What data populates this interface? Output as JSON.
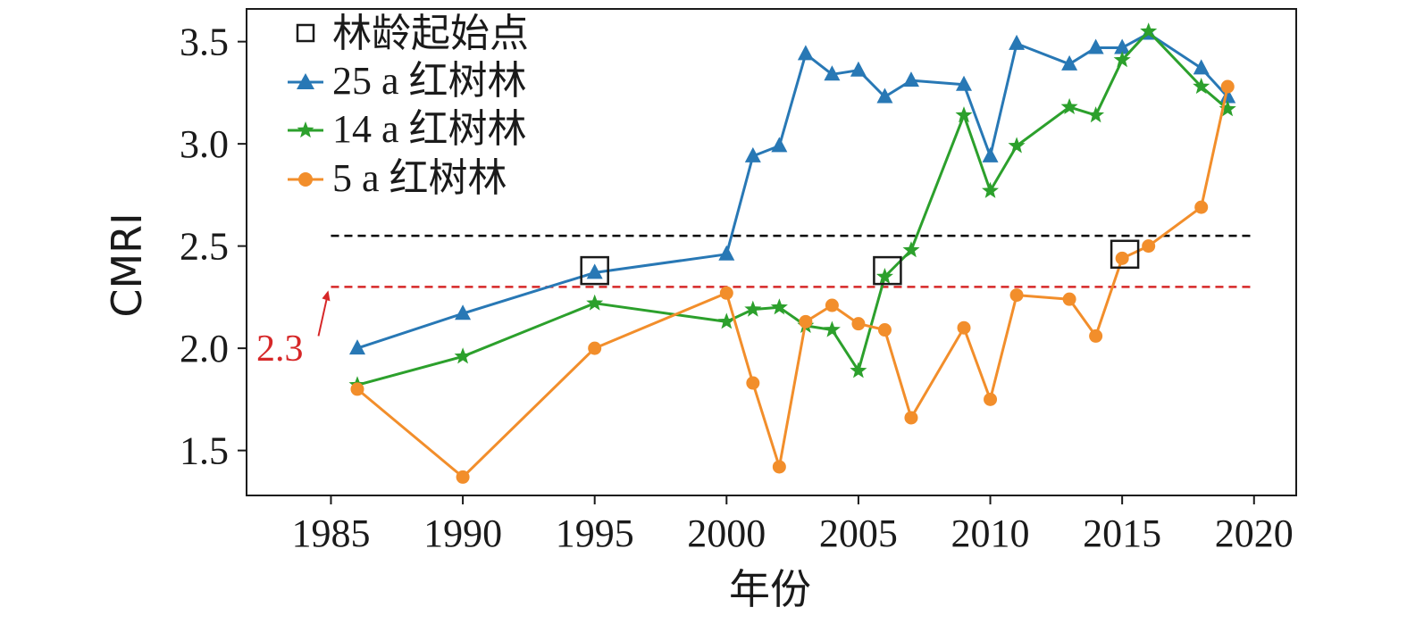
{
  "chart_data": {
    "type": "line",
    "xlabel": "年份",
    "ylabel": "CMRI",
    "xlim": [
      1981.8,
      2021.6
    ],
    "ylim": [
      1.28,
      3.66
    ],
    "xticks": [
      1985,
      1990,
      1995,
      2000,
      2005,
      2010,
      2015,
      2020
    ],
    "yticks": [
      1.5,
      2.0,
      2.5,
      3.0,
      3.5
    ],
    "ytick_labels": [
      "1.5",
      "2.0",
      "2.5",
      "3.0",
      "3.5"
    ],
    "legend_position": "top-left",
    "grid": false,
    "reference_lines": [
      {
        "y": 2.55,
        "color": "#000000",
        "style": "dashed"
      },
      {
        "y": 2.3,
        "color": "#d62728",
        "style": "dashed",
        "label": "2.3"
      }
    ],
    "start_markers": {
      "name": "林龄起始点",
      "points": [
        {
          "x": 1995,
          "y": 2.38
        },
        {
          "x": 2006.1,
          "y": 2.38
        },
        {
          "x": 2015.1,
          "y": 2.46
        }
      ]
    },
    "series": [
      {
        "name": "25 a 红树林",
        "color": "#2878b5",
        "marker": "triangle",
        "x": [
          1986,
          1990,
          1995,
          2000,
          2001,
          2002,
          2003,
          2004,
          2005,
          2006,
          2007,
          2009,
          2010,
          2011,
          2013,
          2014,
          2015,
          2016,
          2018,
          2019
        ],
        "y": [
          2.0,
          2.17,
          2.37,
          2.46,
          2.94,
          2.99,
          3.44,
          3.34,
          3.36,
          3.23,
          3.31,
          3.29,
          2.94,
          3.49,
          3.39,
          3.47,
          3.47,
          3.54,
          3.37,
          3.23
        ]
      },
      {
        "name": "14 a 红树林",
        "color": "#2ca02c",
        "marker": "star",
        "x": [
          1986,
          1990,
          1995,
          2000,
          2001,
          2002,
          2003,
          2004,
          2005,
          2006,
          2007,
          2009,
          2010,
          2011,
          2013,
          2014,
          2015,
          2016,
          2018,
          2019
        ],
        "y": [
          1.82,
          1.96,
          2.22,
          2.13,
          2.19,
          2.2,
          2.11,
          2.09,
          1.89,
          2.35,
          2.48,
          3.14,
          2.77,
          2.99,
          3.18,
          3.14,
          3.41,
          3.55,
          3.28,
          3.17
        ]
      },
      {
        "name": "5 a 红树林",
        "color": "#f28e2b",
        "marker": "circle",
        "x": [
          1986,
          1990,
          1995,
          2000,
          2001,
          2002,
          2003,
          2004,
          2005,
          2006,
          2007,
          2009,
          2010,
          2011,
          2013,
          2014,
          2015,
          2016,
          2018,
          2019
        ],
        "y": [
          1.8,
          1.37,
          2.0,
          2.27,
          1.83,
          1.42,
          2.13,
          2.21,
          2.12,
          2.09,
          1.66,
          2.1,
          1.75,
          2.26,
          2.24,
          2.06,
          2.44,
          2.5,
          2.69,
          3.28
        ]
      }
    ]
  }
}
